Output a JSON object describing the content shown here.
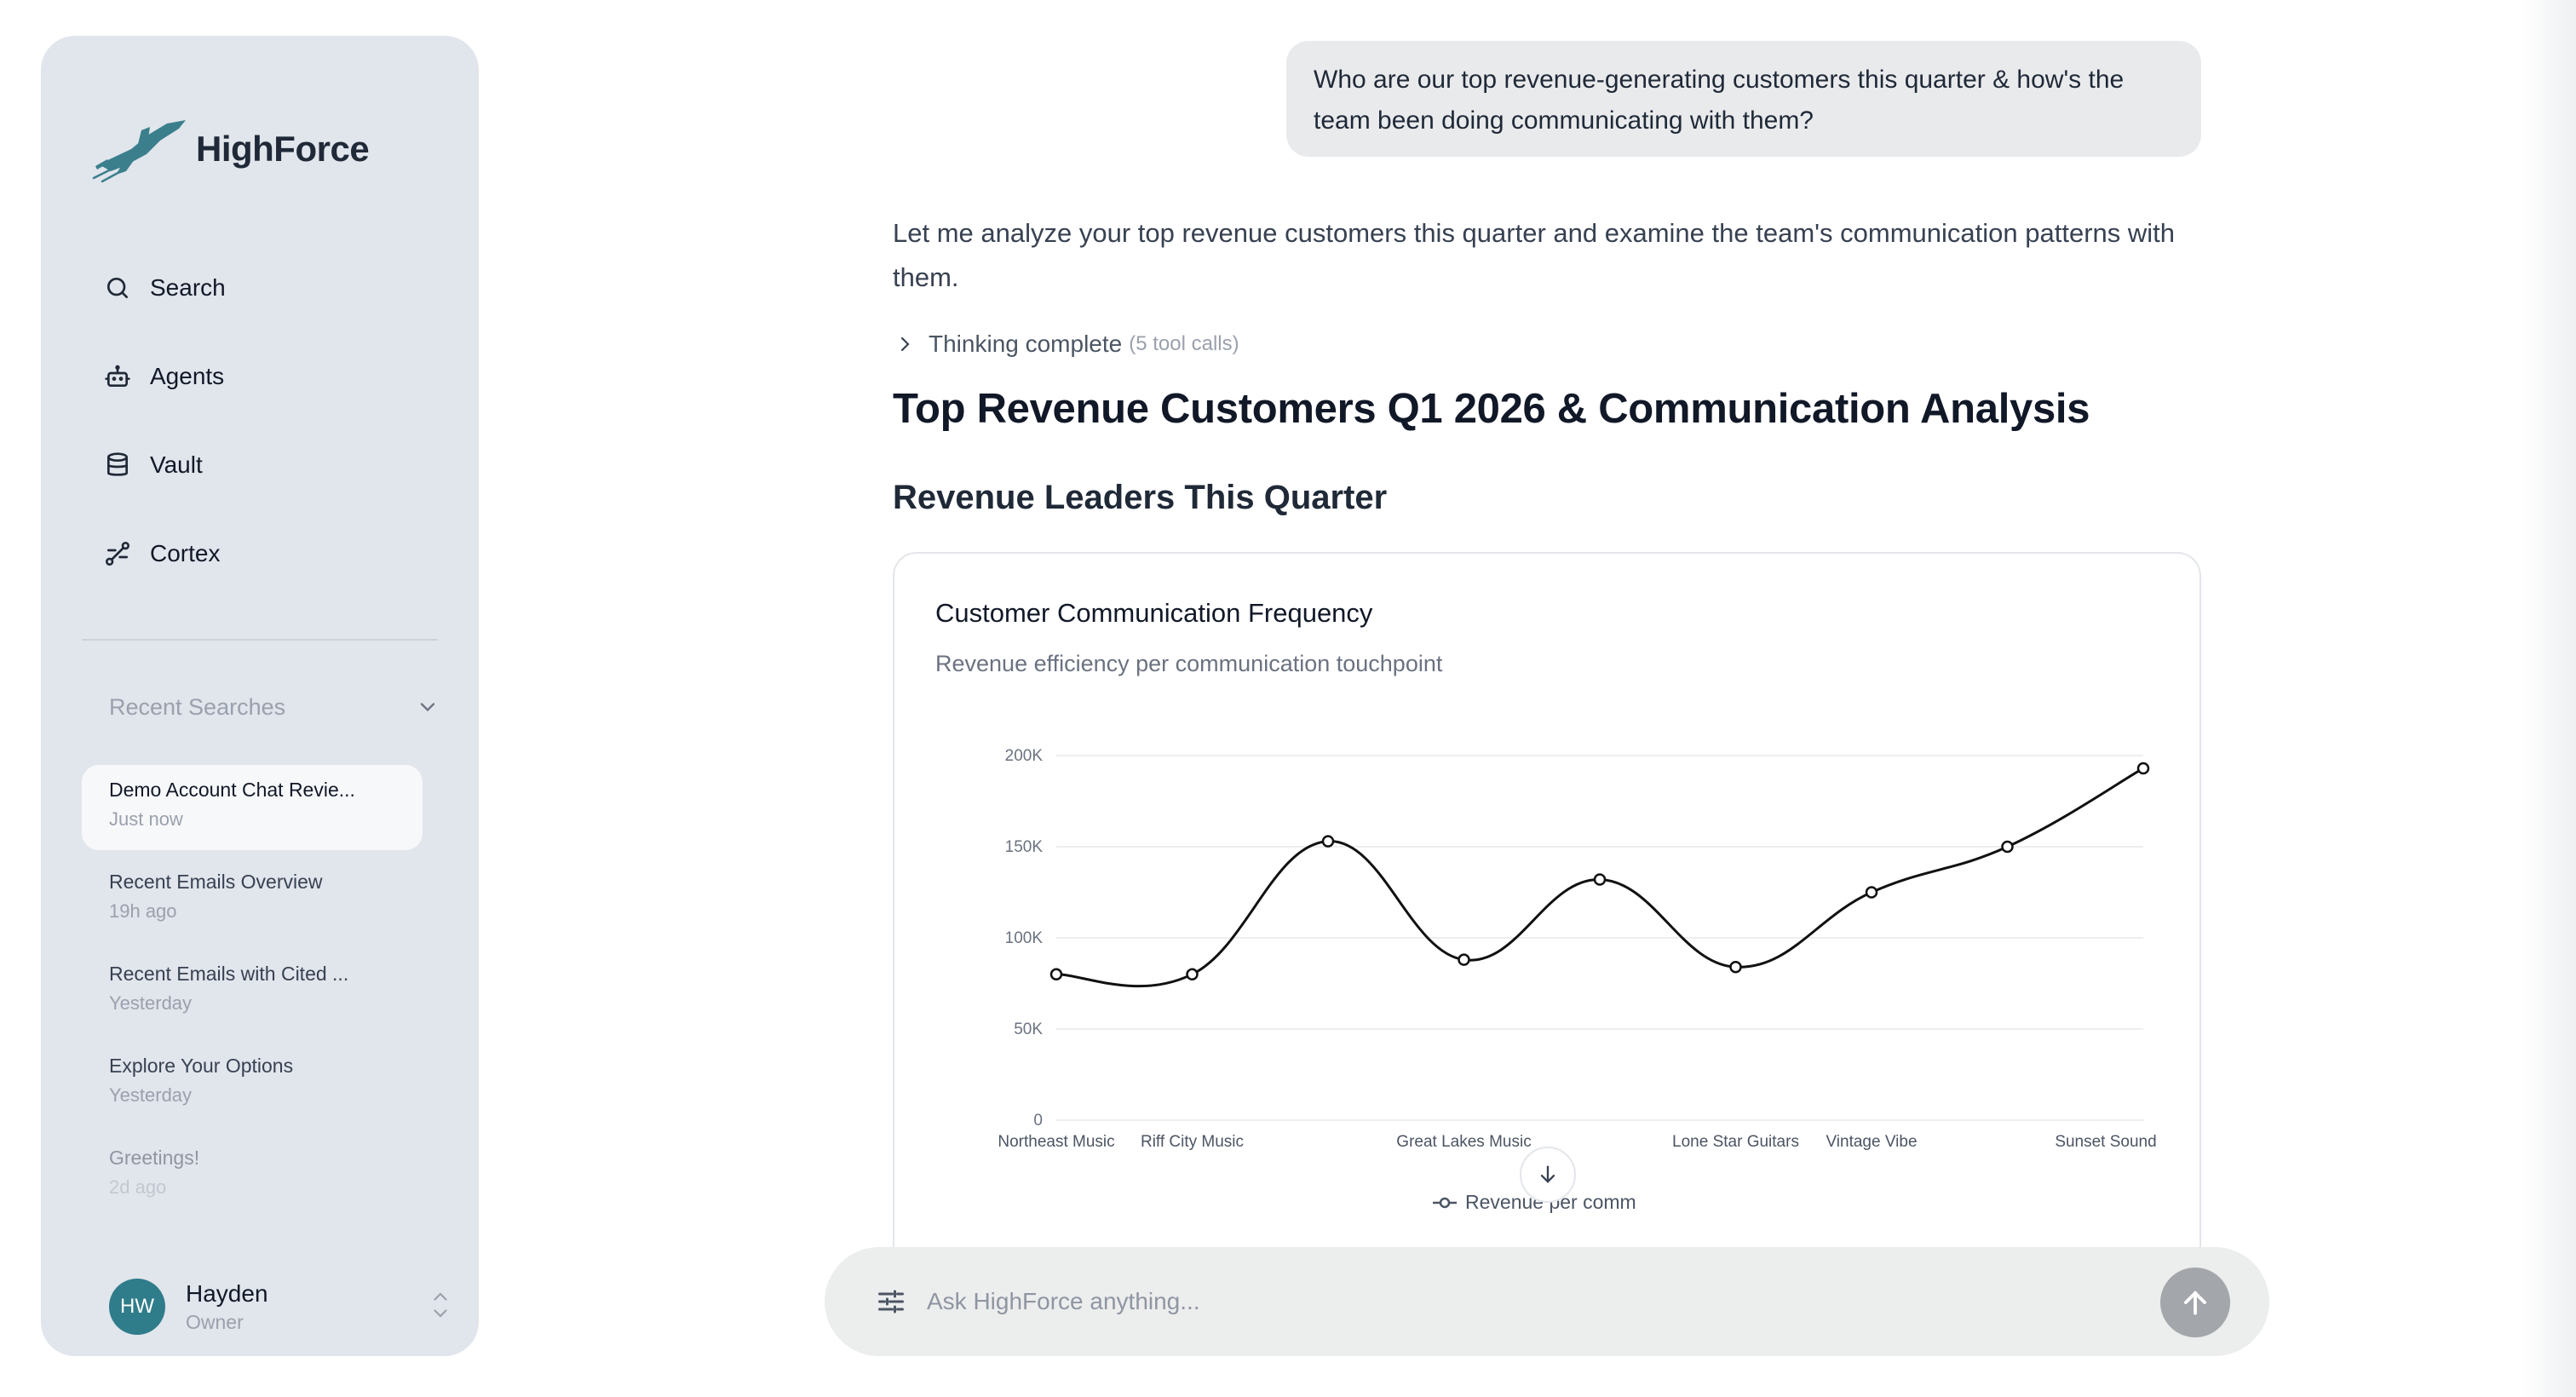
{
  "app": {
    "name": "HighForce"
  },
  "sidebar": {
    "nav": [
      {
        "label": "Search",
        "icon": "search-icon"
      },
      {
        "label": "Agents",
        "icon": "robot-icon"
      },
      {
        "label": "Vault",
        "icon": "database-icon"
      },
      {
        "label": "Cortex",
        "icon": "workflow-icon"
      }
    ],
    "recent": {
      "label": "Recent Searches",
      "items": [
        {
          "title": "Demo Account Chat Revie...",
          "time": "Just now",
          "active": true
        },
        {
          "title": "Recent Emails Overview",
          "time": "19h ago"
        },
        {
          "title": "Recent Emails with Cited ...",
          "time": "Yesterday"
        },
        {
          "title": "Explore Your Options",
          "time": "Yesterday"
        },
        {
          "title": "Greetings!",
          "time": "2d ago"
        }
      ]
    },
    "user": {
      "initials": "HW",
      "name": "Hayden",
      "role": "Owner"
    }
  },
  "conversation": {
    "user_message": "Who are our top revenue-generating customers this quarter & how's the team been doing communicating with them?",
    "intro": "Let me analyze your top revenue customers this quarter and examine the team's communication patterns with them.",
    "thinking": {
      "label": "Thinking complete",
      "count": "(5 tool calls)"
    },
    "heading": "Top Revenue Customers Q1 2026 & Communication Analysis",
    "subheading": "Revenue Leaders This Quarter"
  },
  "chart_data": {
    "type": "line",
    "title": "Customer Communication Frequency",
    "subtitle": "Revenue efficiency per communication touchpoint",
    "y_ticks": [
      "0",
      "50K",
      "100K",
      "150K",
      "200K"
    ],
    "ylim": [
      0,
      200000
    ],
    "categories": [
      "Northeast Music",
      "Riff City Music",
      "",
      "Great Lakes Music",
      "",
      "Lone Star Guitars",
      "Vintage Vibe",
      "",
      "Sunset Sound"
    ],
    "series": [
      {
        "name": "Revenue per comm",
        "values": [
          80000,
          80000,
          153000,
          88000,
          132000,
          84000,
          125000,
          150000,
          193000
        ]
      }
    ],
    "grid": true,
    "legend": "bottom",
    "color": "#111111"
  },
  "composer": {
    "placeholder": "Ask HighForce anything..."
  },
  "colors": {
    "sidebar_bg": "#e1e5ec",
    "avatar": "#2f7c8a",
    "logo": "#3b7f8c"
  }
}
